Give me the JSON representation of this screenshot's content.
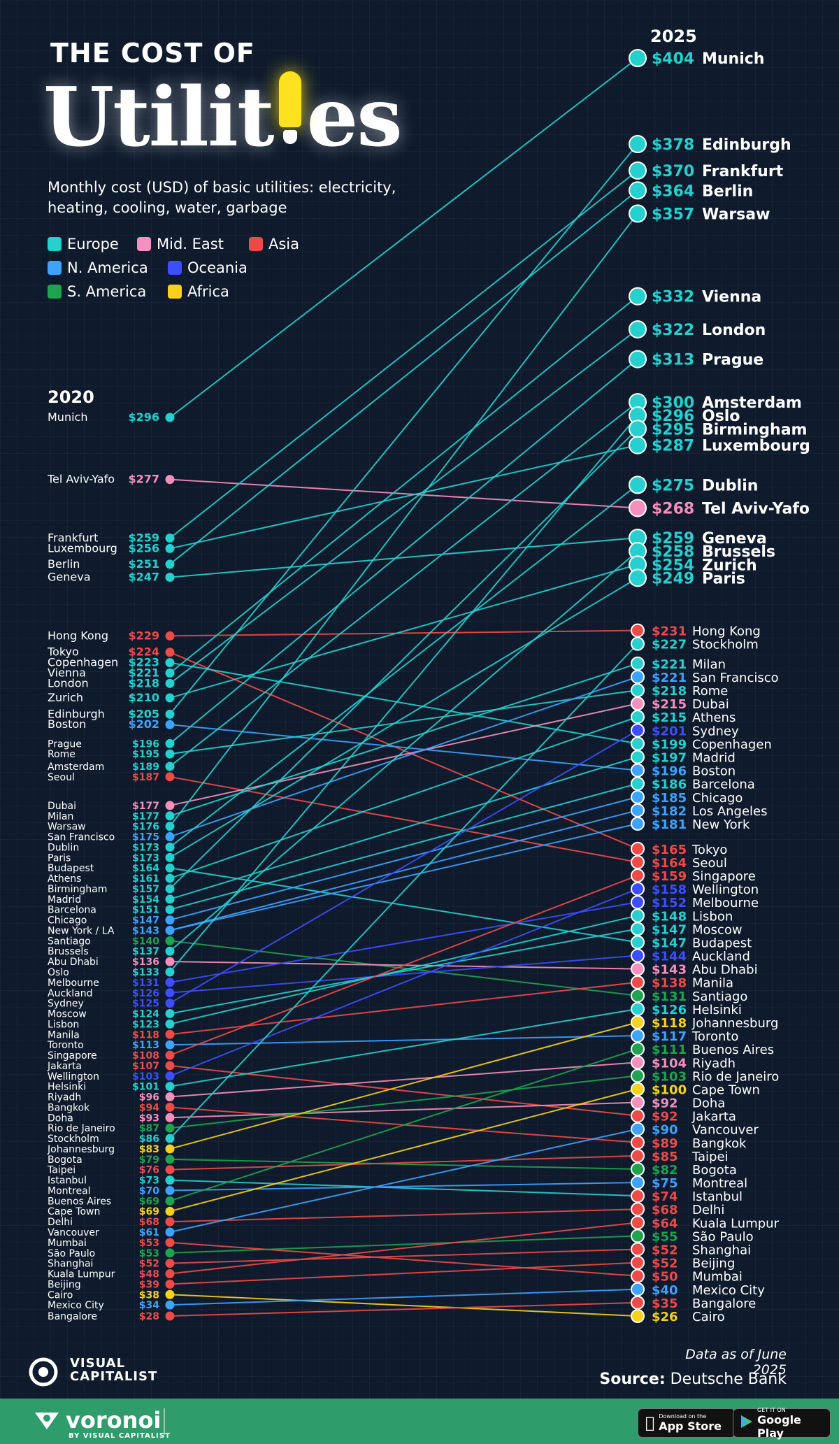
{
  "title_line1": "THE COST OF",
  "title_big": "Utilities",
  "subtitle": "Monthly cost (USD) of basic utilities: electricity, heating, cooling, water, garbage",
  "legend": [
    {
      "label": "Europe",
      "color": "#26d0ce"
    },
    {
      "label": "Mid. East",
      "color": "#f58fbd"
    },
    {
      "label": "Asia",
      "color": "#ee4a48"
    },
    {
      "label": "N. America",
      "color": "#3ea2ff"
    },
    {
      "label": "Oceania",
      "color": "#3d4dff"
    },
    {
      "label": "S. America",
      "color": "#1fa34f"
    },
    {
      "label": "Africa",
      "color": "#f7d21c"
    }
  ],
  "year_left": "2020",
  "year_right": "2025",
  "data_note": "Data as of June 2025",
  "source_label": "Source:",
  "source_value": "Deutsche Bank",
  "brand": "VISUAL CAPITALIST",
  "footer": {
    "logo": "voronoi",
    "logo_sub": "BY VISUAL CAPITALIST",
    "app_store_small": "Download on the",
    "app_store_big": "App Store",
    "google_small": "GET IT ON",
    "google_big": "Google Play"
  },
  "chart_data": {
    "type": "line",
    "chart_subtype": "slope",
    "x": [
      "2020",
      "2025"
    ],
    "region_colors": {
      "Europe": "#26d0ce",
      "Mid. East": "#f58fbd",
      "Asia": "#ee4a48",
      "N. America": "#3ea2ff",
      "Oceania": "#3d4dff",
      "S. America": "#1fa34f",
      "Africa": "#f7d21c"
    },
    "left_labels": [
      {
        "city": "Munich",
        "value": "$296",
        "region": "Europe"
      },
      {
        "city": "Tel Aviv-Yafo",
        "value": "$277",
        "region": "Mid. East"
      },
      {
        "city": "Frankfurt",
        "value": "$259",
        "region": "Europe"
      },
      {
        "city": "Luxembourg",
        "value": "$256",
        "region": "Europe"
      },
      {
        "city": "Berlin",
        "value": "$251",
        "region": "Europe"
      },
      {
        "city": "Geneva",
        "value": "$247",
        "region": "Europe"
      },
      {
        "city": "Hong Kong",
        "value": "$229",
        "region": "Asia"
      },
      {
        "city": "Tokyo",
        "value": "$224",
        "region": "Asia"
      },
      {
        "city": "Copenhagen",
        "value": "$223",
        "region": "Europe"
      },
      {
        "city": "Vienna",
        "value": "$221",
        "region": "Europe"
      },
      {
        "city": "London",
        "value": "$218",
        "region": "Europe"
      },
      {
        "city": "Zurich",
        "value": "$210",
        "region": "Europe"
      },
      {
        "city": "Edinburgh",
        "value": "$205",
        "region": "Europe"
      },
      {
        "city": "Boston",
        "value": "$202",
        "region": "N. America"
      },
      {
        "city": "Prague",
        "value": "$196",
        "region": "Europe"
      },
      {
        "city": "Rome",
        "value": "$195",
        "region": "Europe"
      },
      {
        "city": "Amsterdam",
        "value": "$189",
        "region": "Europe"
      },
      {
        "city": "Seoul",
        "value": "$187",
        "region": "Asia"
      },
      {
        "city": "Dubai",
        "value": "$177",
        "region": "Mid. East"
      },
      {
        "city": "Milan",
        "value": "$177",
        "region": "Europe"
      },
      {
        "city": "Warsaw",
        "value": "$176",
        "region": "Europe"
      },
      {
        "city": "San Francisco",
        "value": "$175",
        "region": "N. America"
      },
      {
        "city": "Dublin",
        "value": "$173",
        "region": "Europe"
      },
      {
        "city": "Paris",
        "value": "$173",
        "region": "Europe"
      },
      {
        "city": "Budapest",
        "value": "$164",
        "region": "Europe"
      },
      {
        "city": "Athens",
        "value": "$161",
        "region": "Europe"
      },
      {
        "city": "Birmingham",
        "value": "$157",
        "region": "Europe"
      },
      {
        "city": "Madrid",
        "value": "$154",
        "region": "Europe"
      },
      {
        "city": "Barcelona",
        "value": "$151",
        "region": "Europe"
      },
      {
        "city": "Chicago",
        "value": "$147",
        "region": "N. America"
      },
      {
        "city": "New York / LA",
        "value": "$143",
        "region": "N. America"
      },
      {
        "city": "Santiago",
        "value": "$140",
        "region": "S. America"
      },
      {
        "city": "Brussels",
        "value": "$137",
        "region": "Europe"
      },
      {
        "city": "Abu Dhabi",
        "value": "$136",
        "region": "Mid. East"
      },
      {
        "city": "Oslo",
        "value": "$133",
        "region": "Europe"
      },
      {
        "city": "Melbourne",
        "value": "$131",
        "region": "Oceania"
      },
      {
        "city": "Auckland",
        "value": "$126",
        "region": "Oceania"
      },
      {
        "city": "Sydney",
        "value": "$125",
        "region": "Oceania"
      },
      {
        "city": "Moscow",
        "value": "$124",
        "region": "Europe"
      },
      {
        "city": "Lisbon",
        "value": "$123",
        "region": "Europe"
      },
      {
        "city": "Manila",
        "value": "$118",
        "region": "Asia"
      },
      {
        "city": "Toronto",
        "value": "$113",
        "region": "N. America"
      },
      {
        "city": "Singapore",
        "value": "$108",
        "region": "Asia"
      },
      {
        "city": "Jakarta",
        "value": "$107",
        "region": "Asia"
      },
      {
        "city": "Wellington",
        "value": "$103",
        "region": "Oceania"
      },
      {
        "city": "Helsinki",
        "value": "$101",
        "region": "Europe"
      },
      {
        "city": "Riyadh",
        "value": "$96",
        "region": "Mid. East"
      },
      {
        "city": "Bangkok",
        "value": "$94",
        "region": "Asia"
      },
      {
        "city": "Doha",
        "value": "$93",
        "region": "Mid. East"
      },
      {
        "city": "Rio de Janeiro",
        "value": "$87",
        "region": "S. America"
      },
      {
        "city": "Stockholm",
        "value": "$86",
        "region": "Europe"
      },
      {
        "city": "Johannesburg",
        "value": "$83",
        "region": "Africa"
      },
      {
        "city": "Bogota",
        "value": "$79",
        "region": "S. America"
      },
      {
        "city": "Taipei",
        "value": "$76",
        "region": "Asia"
      },
      {
        "city": "Istanbul",
        "value": "$73",
        "region": "Europe"
      },
      {
        "city": "Montreal",
        "value": "$70",
        "region": "N. America"
      },
      {
        "city": "Buenos Aires",
        "value": "$69",
        "region": "S. America"
      },
      {
        "city": "Cape Town",
        "value": "$69",
        "region": "Africa"
      },
      {
        "city": "Delhi",
        "value": "$68",
        "region": "Asia"
      },
      {
        "city": "Vancouver",
        "value": "$61",
        "region": "N. America"
      },
      {
        "city": "Mumbai",
        "value": "$53",
        "region": "Asia"
      },
      {
        "city": "São Paulo",
        "value": "$53",
        "region": "S. America"
      },
      {
        "city": "Shanghai",
        "value": "$52",
        "region": "Asia"
      },
      {
        "city": "Kuala Lumpur",
        "value": "$48",
        "region": "Asia"
      },
      {
        "city": "Beijing",
        "value": "$39",
        "region": "Asia"
      },
      {
        "city": "Cairo",
        "value": "$38",
        "region": "Africa"
      },
      {
        "city": "Mexico City",
        "value": "$34",
        "region": "N. America"
      },
      {
        "city": "Bangalore",
        "value": "$28",
        "region": "Asia"
      }
    ],
    "right_labels": [
      {
        "city": "Munich",
        "value": "$404",
        "region": "Europe"
      },
      {
        "city": "Edinburgh",
        "value": "$378",
        "region": "Europe"
      },
      {
        "city": "Frankfurt",
        "value": "$370",
        "region": "Europe"
      },
      {
        "city": "Berlin",
        "value": "$364",
        "region": "Europe"
      },
      {
        "city": "Warsaw",
        "value": "$357",
        "region": "Europe"
      },
      {
        "city": "Vienna",
        "value": "$332",
        "region": "Europe"
      },
      {
        "city": "London",
        "value": "$322",
        "region": "Europe"
      },
      {
        "city": "Prague",
        "value": "$313",
        "region": "Europe"
      },
      {
        "city": "Amsterdam",
        "value": "$300",
        "region": "Europe"
      },
      {
        "city": "Oslo",
        "value": "$296",
        "region": "Europe"
      },
      {
        "city": "Birmingham",
        "value": "$295",
        "region": "Europe"
      },
      {
        "city": "Luxembourg",
        "value": "$287",
        "region": "Europe"
      },
      {
        "city": "Dublin",
        "value": "$275",
        "region": "Europe"
      },
      {
        "city": "Tel Aviv-Yafo",
        "value": "$268",
        "region": "Mid. East"
      },
      {
        "city": "Geneva",
        "value": "$259",
        "region": "Europe"
      },
      {
        "city": "Brussels",
        "value": "$258",
        "region": "Europe"
      },
      {
        "city": "Zurich",
        "value": "$254",
        "region": "Europe"
      },
      {
        "city": "Paris",
        "value": "$249",
        "region": "Europe"
      },
      {
        "city": "Hong Kong",
        "value": "$231",
        "region": "Asia"
      },
      {
        "city": "Stockholm",
        "value": "$227",
        "region": "Europe"
      },
      {
        "city": "Milan",
        "value": "$221",
        "region": "Europe"
      },
      {
        "city": "San Francisco",
        "value": "$221",
        "region": "N. America"
      },
      {
        "city": "Rome",
        "value": "$218",
        "region": "Europe"
      },
      {
        "city": "Dubai",
        "value": "$215",
        "region": "Mid. East"
      },
      {
        "city": "Athens",
        "value": "$215",
        "region": "Europe"
      },
      {
        "city": "Sydney",
        "value": "$201",
        "region": "Oceania"
      },
      {
        "city": "Copenhagen",
        "value": "$199",
        "region": "Europe"
      },
      {
        "city": "Madrid",
        "value": "$197",
        "region": "Europe"
      },
      {
        "city": "Boston",
        "value": "$196",
        "region": "N. America"
      },
      {
        "city": "Barcelona",
        "value": "$186",
        "region": "Europe"
      },
      {
        "city": "Chicago",
        "value": "$185",
        "region": "N. America"
      },
      {
        "city": "Los Angeles",
        "value": "$182",
        "region": "N. America"
      },
      {
        "city": "New York",
        "value": "$181",
        "region": "N. America"
      },
      {
        "city": "Tokyo",
        "value": "$165",
        "region": "Asia"
      },
      {
        "city": "Seoul",
        "value": "$164",
        "region": "Asia"
      },
      {
        "city": "Singapore",
        "value": "$159",
        "region": "Asia"
      },
      {
        "city": "Wellington",
        "value": "$158",
        "region": "Oceania"
      },
      {
        "city": "Melbourne",
        "value": "$152",
        "region": "Oceania"
      },
      {
        "city": "Lisbon",
        "value": "$148",
        "region": "Europe"
      },
      {
        "city": "Moscow",
        "value": "$147",
        "region": "Europe"
      },
      {
        "city": "Budapest",
        "value": "$147",
        "region": "Europe"
      },
      {
        "city": "Auckland",
        "value": "$144",
        "region": "Oceania"
      },
      {
        "city": "Abu Dhabi",
        "value": "$143",
        "region": "Mid. East"
      },
      {
        "city": "Manila",
        "value": "$138",
        "region": "Asia"
      },
      {
        "city": "Santiago",
        "value": "$131",
        "region": "S. America"
      },
      {
        "city": "Helsinki",
        "value": "$126",
        "region": "Europe"
      },
      {
        "city": "Johannesburg",
        "value": "$118",
        "region": "Africa"
      },
      {
        "city": "Toronto",
        "value": "$117",
        "region": "N. America"
      },
      {
        "city": "Buenos Aires",
        "value": "$111",
        "region": "S. America"
      },
      {
        "city": "Riyadh",
        "value": "$104",
        "region": "Mid. East"
      },
      {
        "city": "Rio de Janeiro",
        "value": "$103",
        "region": "S. America"
      },
      {
        "city": "Cape Town",
        "value": "$100",
        "region": "Africa"
      },
      {
        "city": "Doha",
        "value": "$92",
        "region": "Mid. East"
      },
      {
        "city": "Jakarta",
        "value": "$92",
        "region": "Asia"
      },
      {
        "city": "Vancouver",
        "value": "$90",
        "region": "N. America"
      },
      {
        "city": "Bangkok",
        "value": "$89",
        "region": "Asia"
      },
      {
        "city": "Taipei",
        "value": "$85",
        "region": "Asia"
      },
      {
        "city": "Bogota",
        "value": "$82",
        "region": "S. America"
      },
      {
        "city": "Montreal",
        "value": "$75",
        "region": "N. America"
      },
      {
        "city": "Istanbul",
        "value": "$74",
        "region": "Asia"
      },
      {
        "city": "Delhi",
        "value": "$68",
        "region": "Asia"
      },
      {
        "city": "Kuala Lumpur",
        "value": "$64",
        "region": "Asia"
      },
      {
        "city": "São Paulo",
        "value": "$55",
        "region": "S. America"
      },
      {
        "city": "Shanghai",
        "value": "$52",
        "region": "Asia"
      },
      {
        "city": "Beijing",
        "value": "$52",
        "region": "Asia"
      },
      {
        "city": "Mumbai",
        "value": "$50",
        "region": "Asia"
      },
      {
        "city": "Mexico City",
        "value": "$40",
        "region": "N. America"
      },
      {
        "city": "Bangalore",
        "value": "$35",
        "region": "Asia"
      },
      {
        "city": "Cairo",
        "value": "$26",
        "region": "Africa"
      }
    ]
  }
}
